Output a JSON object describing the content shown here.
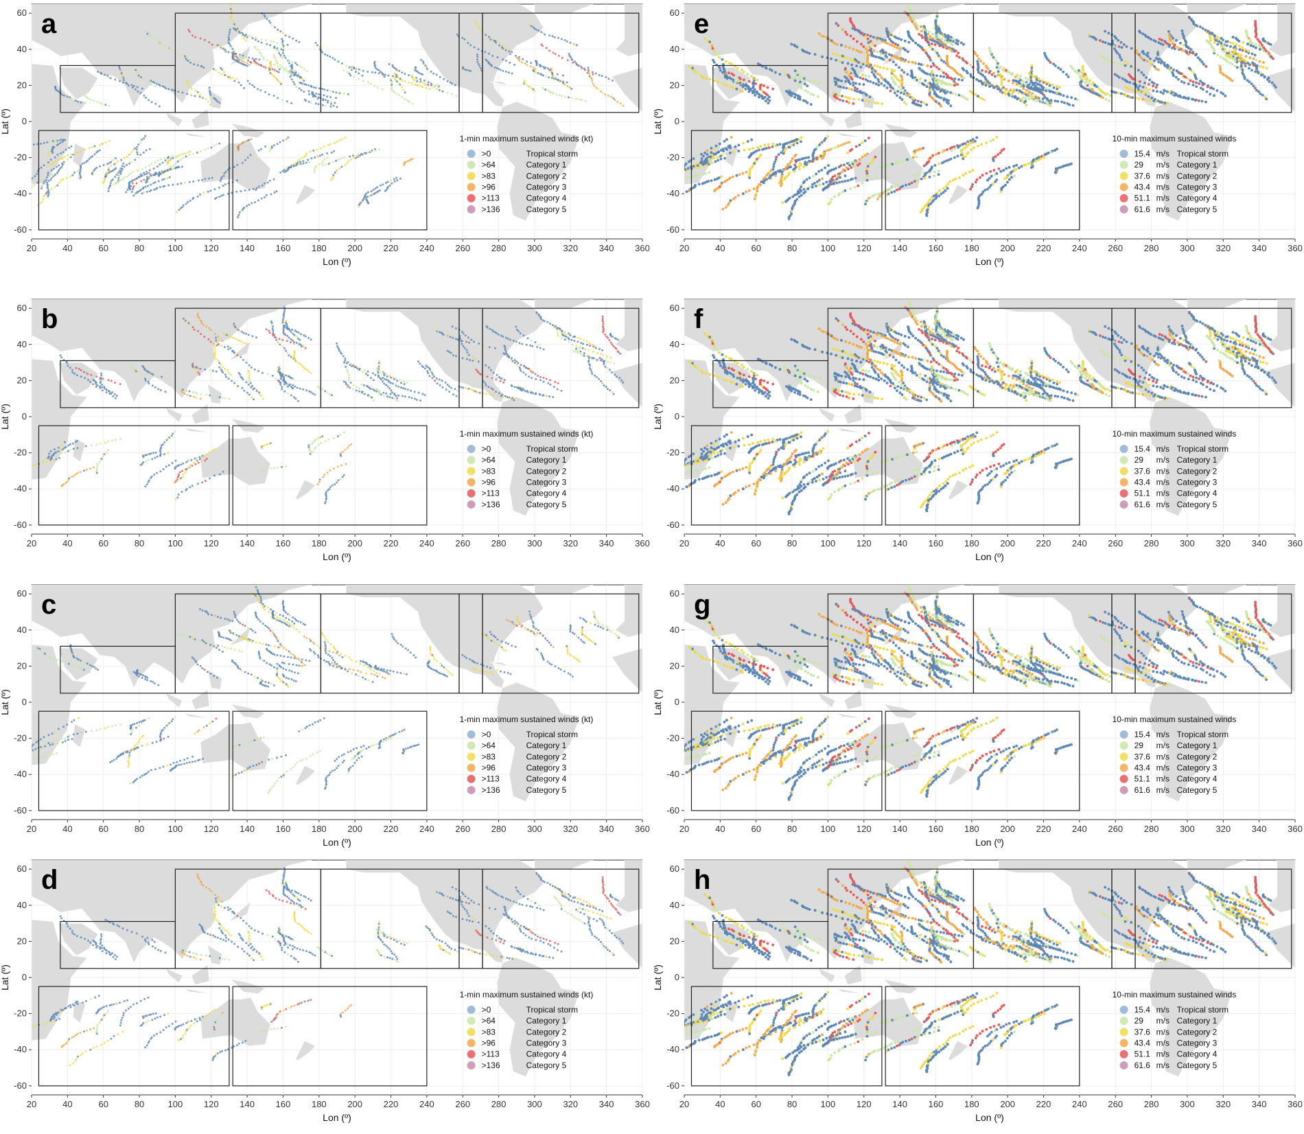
{
  "chart_data": {
    "type": "scatter",
    "panel_labels": [
      "a",
      "b",
      "c",
      "d",
      "e",
      "f",
      "g",
      "h"
    ],
    "xlabel": "Lon (º)",
    "ylabel": "Lat (º)",
    "xlim": [
      20,
      360
    ],
    "ylim": [
      -65,
      65
    ],
    "xticks": [
      20,
      40,
      60,
      80,
      100,
      120,
      140,
      160,
      180,
      200,
      220,
      240,
      260,
      280,
      300,
      320,
      340,
      360
    ],
    "yticks": [
      60,
      40,
      20,
      0,
      -20,
      -40,
      -60
    ],
    "grid": true,
    "basin_boxes": [
      {
        "lon": [
          36,
          100
        ],
        "lat": [
          5,
          31
        ]
      },
      {
        "lon": [
          100,
          181
        ],
        "lat": [
          5,
          60
        ]
      },
      {
        "lon": [
          181,
          258
        ],
        "lat": [
          5,
          60
        ]
      },
      {
        "lon": [
          258,
          271
        ],
        "lat": [
          5,
          60
        ]
      },
      {
        "lon": [
          271,
          358
        ],
        "lat": [
          5,
          60
        ]
      },
      {
        "lon": [
          24,
          130
        ],
        "lat": [
          -60,
          -5
        ]
      },
      {
        "lon": [
          132,
          240
        ],
        "lat": [
          -60,
          -5
        ]
      }
    ],
    "legends": {
      "left": {
        "title": "1-min maximum sustained winds (kt)",
        "entries": [
          {
            "threshold": ">0",
            "category": "Tropical storm",
            "color": "#8fb0d0"
          },
          {
            "threshold": ">64",
            "category": "Category 1",
            "color": "#c9e6a8"
          },
          {
            "threshold": ">83",
            "category": "Category 2",
            "color": "#f0d94a"
          },
          {
            "threshold": ">96",
            "category": "Category 3",
            "color": "#f1a94e"
          },
          {
            "threshold": ">113",
            "category": "Category 4",
            "color": "#e5575a"
          },
          {
            "threshold": ">136",
            "category": "Category 5",
            "color": "#c58cae"
          }
        ]
      },
      "right": {
        "title": "10-min maximum sustained winds",
        "entries": [
          {
            "threshold": "15.4",
            "unit": "m/s",
            "category": "Tropical storm",
            "color": "#8fb0d0"
          },
          {
            "threshold": "29",
            "unit": "m/s",
            "category": "Category 1",
            "color": "#c9e6a8"
          },
          {
            "threshold": "37.6",
            "unit": "m/s",
            "category": "Category 2",
            "color": "#f0d94a"
          },
          {
            "threshold": "43.4",
            "unit": "m/s",
            "category": "Category 3",
            "color": "#f1a94e"
          },
          {
            "threshold": "51.1",
            "unit": "m/s",
            "category": "Category 4",
            "color": "#e5575a"
          },
          {
            "threshold": "61.6",
            "unit": "m/s",
            "category": "Category 5",
            "color": "#c58cae"
          }
        ]
      }
    },
    "panels": [
      {
        "label": "a",
        "legend": "left",
        "density": 0.6
      },
      {
        "label": "e",
        "legend": "right",
        "density": 2.2
      },
      {
        "label": "b",
        "legend": "left",
        "density": 0.5
      },
      {
        "label": "f",
        "legend": "right",
        "density": 2.2
      },
      {
        "label": "c",
        "legend": "left",
        "density": 0.4
      },
      {
        "label": "g",
        "legend": "right",
        "density": 2.2
      },
      {
        "label": "d",
        "legend": "left",
        "density": 0.4
      },
      {
        "label": "h",
        "legend": "right",
        "density": 2.2
      }
    ]
  }
}
